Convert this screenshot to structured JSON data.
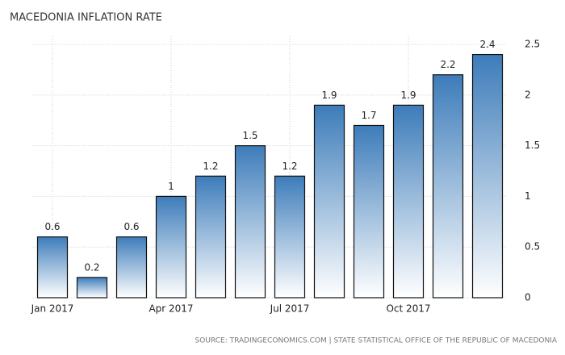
{
  "chart_data": {
    "type": "bar",
    "title": "MACEDONIA INFLATION RATE",
    "source": "SOURCE: TRADINGECONOMICS.COM | STATE STATISTICAL OFFICE OF THE REPUBLIC OF MACEDONIA",
    "categories": [
      "Jan 2017",
      null,
      null,
      "Apr 2017",
      null,
      null,
      "Jul 2017",
      null,
      null,
      "Oct 2017",
      null,
      null
    ],
    "values": [
      0.6,
      0.2,
      0.6,
      1,
      1.2,
      1.5,
      1.2,
      1.9,
      1.7,
      1.9,
      2.2,
      2.4
    ],
    "color": "#3d7cba",
    "ylim": [
      0,
      2.5
    ],
    "yticks": [
      0,
      0.5,
      1,
      1.5,
      2,
      2.5
    ],
    "grid": true
  }
}
